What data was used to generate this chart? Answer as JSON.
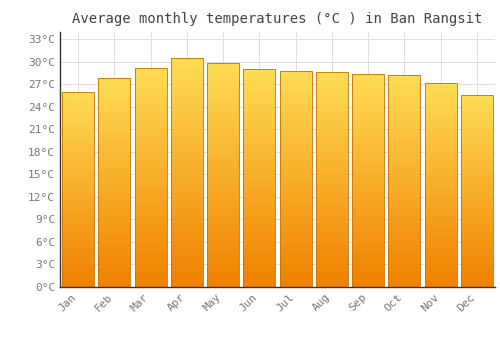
{
  "title": "Average monthly temperatures (°C ) in Ban Rangsit",
  "months": [
    "Jan",
    "Feb",
    "Mar",
    "Apr",
    "May",
    "Jun",
    "Jul",
    "Aug",
    "Sep",
    "Oct",
    "Nov",
    "Dec"
  ],
  "values": [
    26.0,
    27.8,
    29.2,
    30.5,
    29.8,
    29.0,
    28.8,
    28.6,
    28.4,
    28.2,
    27.2,
    25.6
  ],
  "bar_color_top": "#FFDD55",
  "bar_color_bottom": "#F08000",
  "bar_edge_color": "#C87000",
  "background_color": "#FFFFFF",
  "grid_color": "#DDDDDD",
  "text_color": "#777777",
  "title_color": "#444444",
  "ylim": [
    0,
    34
  ],
  "yticks": [
    0,
    3,
    6,
    9,
    12,
    15,
    18,
    21,
    24,
    27,
    30,
    33
  ],
  "title_fontsize": 10,
  "tick_fontsize": 8,
  "bar_width": 0.88
}
